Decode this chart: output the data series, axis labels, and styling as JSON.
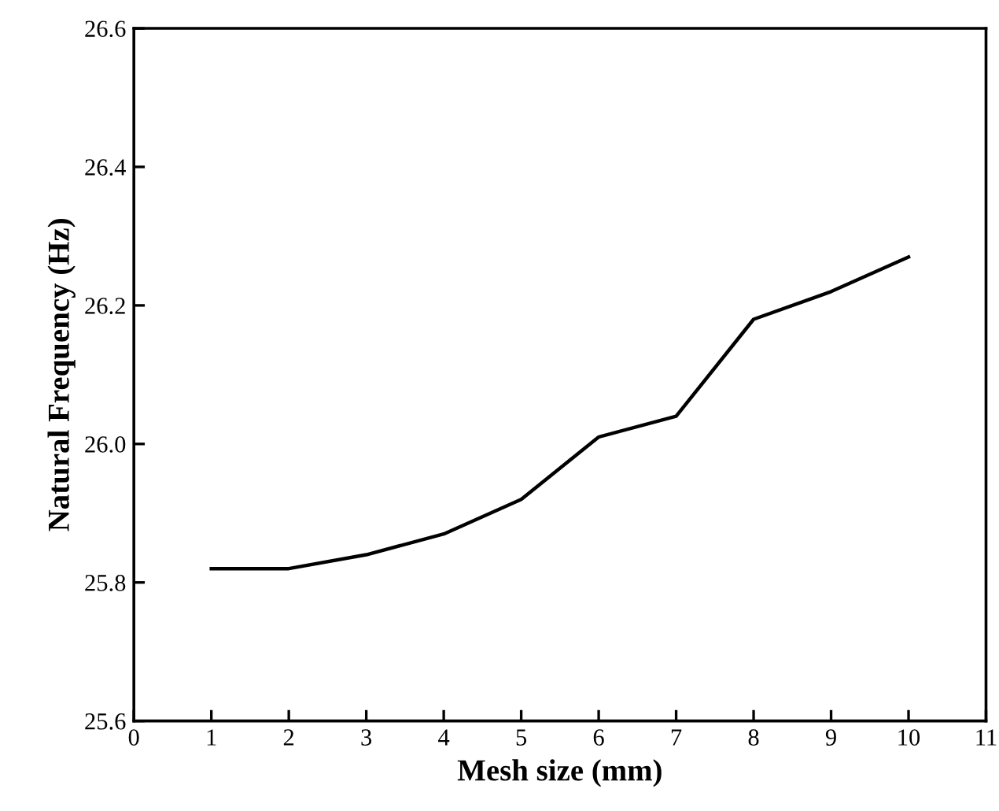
{
  "chart_data": {
    "type": "line",
    "xlabel": "Mesh size (mm)",
    "ylabel": "Natural Frequency (Hz)",
    "x": [
      1,
      2,
      3,
      4,
      5,
      6,
      7,
      8,
      9,
      10
    ],
    "series": [
      {
        "color": "#000000",
        "values": [
          25.82,
          25.82,
          25.84,
          25.87,
          25.92,
          26.01,
          26.04,
          26.18,
          26.22,
          26.27
        ]
      }
    ],
    "xlim": [
      0,
      11
    ],
    "xticks": [
      0,
      1,
      2,
      3,
      4,
      5,
      6,
      7,
      8,
      9,
      10,
      11
    ],
    "ylim": [
      25.6,
      26.6
    ],
    "yticks": [
      {
        "value": 25.6,
        "label": "25.6"
      },
      {
        "value": 25.8,
        "label": "25.8"
      },
      {
        "value": 26.0,
        "label": "26.0"
      },
      {
        "value": 26.2,
        "label": "26.2"
      },
      {
        "value": 26.4,
        "label": "26.4"
      },
      {
        "value": 26.6,
        "label": "26.6"
      }
    ],
    "grid": false,
    "marker": "none",
    "line_style": "solid"
  }
}
